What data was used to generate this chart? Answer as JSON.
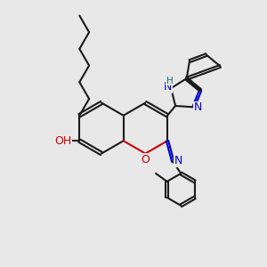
{
  "bg": "#e8e8e8",
  "bc": "#1a1a1a",
  "Oc": "#cc0000",
  "Nc": "#0000cc",
  "Hc": "#007777",
  "bw": 1.5,
  "dbo": 0.06,
  "fs": 9,
  "fss": 7.5,
  "s": 0.95,
  "figsize": [
    3.0,
    3.0
  ],
  "dpi": 100,
  "xlim": [
    0,
    10
  ],
  "ylim": [
    0,
    10
  ]
}
